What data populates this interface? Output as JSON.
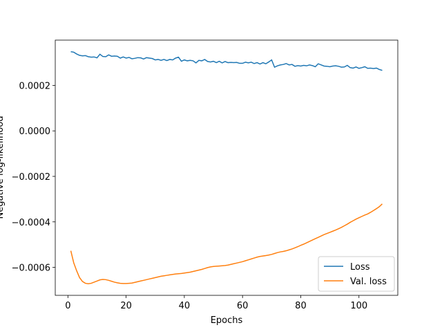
{
  "chart_data": {
    "type": "line",
    "xlabel": "Epochs",
    "ylabel": "Negative log-likelihood",
    "x": [
      1,
      2,
      3,
      4,
      5,
      6,
      7,
      8,
      9,
      10,
      11,
      12,
      13,
      14,
      15,
      16,
      17,
      18,
      19,
      20,
      21,
      22,
      23,
      24,
      25,
      26,
      27,
      28,
      29,
      30,
      31,
      32,
      33,
      34,
      35,
      36,
      37,
      38,
      39,
      40,
      41,
      42,
      43,
      44,
      45,
      46,
      47,
      48,
      49,
      50,
      51,
      52,
      53,
      54,
      55,
      56,
      57,
      58,
      59,
      60,
      61,
      62,
      63,
      64,
      65,
      66,
      67,
      68,
      69,
      70,
      71,
      72,
      73,
      74,
      75,
      76,
      77,
      78,
      79,
      80,
      81,
      82,
      83,
      84,
      85,
      86,
      87,
      88,
      89,
      90,
      91,
      92,
      93,
      94,
      95,
      96,
      97,
      98,
      99,
      100,
      101,
      102,
      103,
      104,
      105,
      106,
      107,
      108
    ],
    "series": [
      {
        "name": "Loss",
        "color": "#1f77b4",
        "values": [
          0.000348,
          0.000346,
          0.000338,
          0.000332,
          0.00033,
          0.000331,
          0.000326,
          0.000324,
          0.000325,
          0.000321,
          0.000337,
          0.000327,
          0.000326,
          0.000334,
          0.000328,
          0.000329,
          0.000328,
          0.00032,
          0.000325,
          0.00032,
          0.000323,
          0.000317,
          0.000319,
          0.000322,
          0.000321,
          0.000316,
          0.000322,
          0.00032,
          0.000318,
          0.000312,
          0.000314,
          0.00031,
          0.000314,
          0.000309,
          0.000314,
          0.000312,
          0.00032,
          0.000324,
          0.000306,
          0.000312,
          0.000308,
          0.00031,
          0.000308,
          0.000299,
          0.00031,
          0.000308,
          0.000314,
          0.000305,
          0.000303,
          0.000306,
          0.0003,
          0.000306,
          0.000299,
          0.000305,
          0.0003,
          0.000301,
          0.0003,
          0.000301,
          0.000297,
          0.000297,
          0.000302,
          0.000299,
          0.000302,
          0.000296,
          0.0003,
          0.000294,
          0.0003,
          0.000295,
          0.000303,
          0.000312,
          0.00028,
          0.000286,
          0.00029,
          0.000292,
          0.000296,
          0.00029,
          0.000292,
          0.000284,
          0.000287,
          0.000285,
          0.000288,
          0.000286,
          0.00029,
          0.000287,
          0.000282,
          0.000295,
          0.00029,
          0.000285,
          0.000284,
          0.000282,
          0.000285,
          0.000286,
          0.000284,
          0.00028,
          0.000281,
          0.000288,
          0.000278,
          0.000276,
          0.000281,
          0.000275,
          0.000278,
          0.000282,
          0.000275,
          0.000276,
          0.000274,
          0.000276,
          0.00027,
          0.000266
        ]
      },
      {
        "name": "Val. loss",
        "color": "#ff7f0e",
        "values": [
          -0.000527,
          -0.00058,
          -0.000615,
          -0.000645,
          -0.000662,
          -0.00067,
          -0.000672,
          -0.00067,
          -0.000665,
          -0.00066,
          -0.000655,
          -0.000653,
          -0.000654,
          -0.000657,
          -0.000661,
          -0.000665,
          -0.000668,
          -0.00067,
          -0.000671,
          -0.000671,
          -0.00067,
          -0.000669,
          -0.000666,
          -0.000663,
          -0.00066,
          -0.000657,
          -0.000654,
          -0.000651,
          -0.000648,
          -0.000645,
          -0.000642,
          -0.000639,
          -0.000637,
          -0.000635,
          -0.000633,
          -0.000631,
          -0.000629,
          -0.000628,
          -0.000627,
          -0.000625,
          -0.000623,
          -0.000621,
          -0.000618,
          -0.000615,
          -0.000612,
          -0.000609,
          -0.000605,
          -0.000601,
          -0.000598,
          -0.000596,
          -0.000595,
          -0.000594,
          -0.000593,
          -0.000592,
          -0.00059,
          -0.000587,
          -0.000584,
          -0.000581,
          -0.000578,
          -0.000575,
          -0.000571,
          -0.000567,
          -0.000563,
          -0.000559,
          -0.000555,
          -0.000552,
          -0.00055,
          -0.000548,
          -0.000546,
          -0.000543,
          -0.000539,
          -0.000535,
          -0.000532,
          -0.00053,
          -0.000527,
          -0.000523,
          -0.000519,
          -0.000514,
          -0.000509,
          -0.000503,
          -0.000498,
          -0.000492,
          -0.000486,
          -0.00048,
          -0.000474,
          -0.000468,
          -0.000462,
          -0.000456,
          -0.000451,
          -0.000446,
          -0.000441,
          -0.000436,
          -0.00043,
          -0.000424,
          -0.000417,
          -0.00041,
          -0.000402,
          -0.000395,
          -0.000388,
          -0.000382,
          -0.000376,
          -0.00037,
          -0.000365,
          -0.000358,
          -0.00035,
          -0.000342,
          -0.000333,
          -0.000321
        ]
      }
    ],
    "xlim": [
      -4.35,
      113.35
    ],
    "xticks": [
      0,
      20,
      40,
      60,
      80,
      100
    ],
    "ylim": [
      -0.000723,
      0.000399
    ],
    "yticks": [
      {
        "value": -0.0006,
        "label": "−0.0006"
      },
      {
        "value": -0.0004,
        "label": "−0.0004"
      },
      {
        "value": -0.0002,
        "label": "−0.0002"
      },
      {
        "value": 0,
        "label": "0.0000"
      },
      0.0002
    ],
    "legend": "lower right"
  }
}
